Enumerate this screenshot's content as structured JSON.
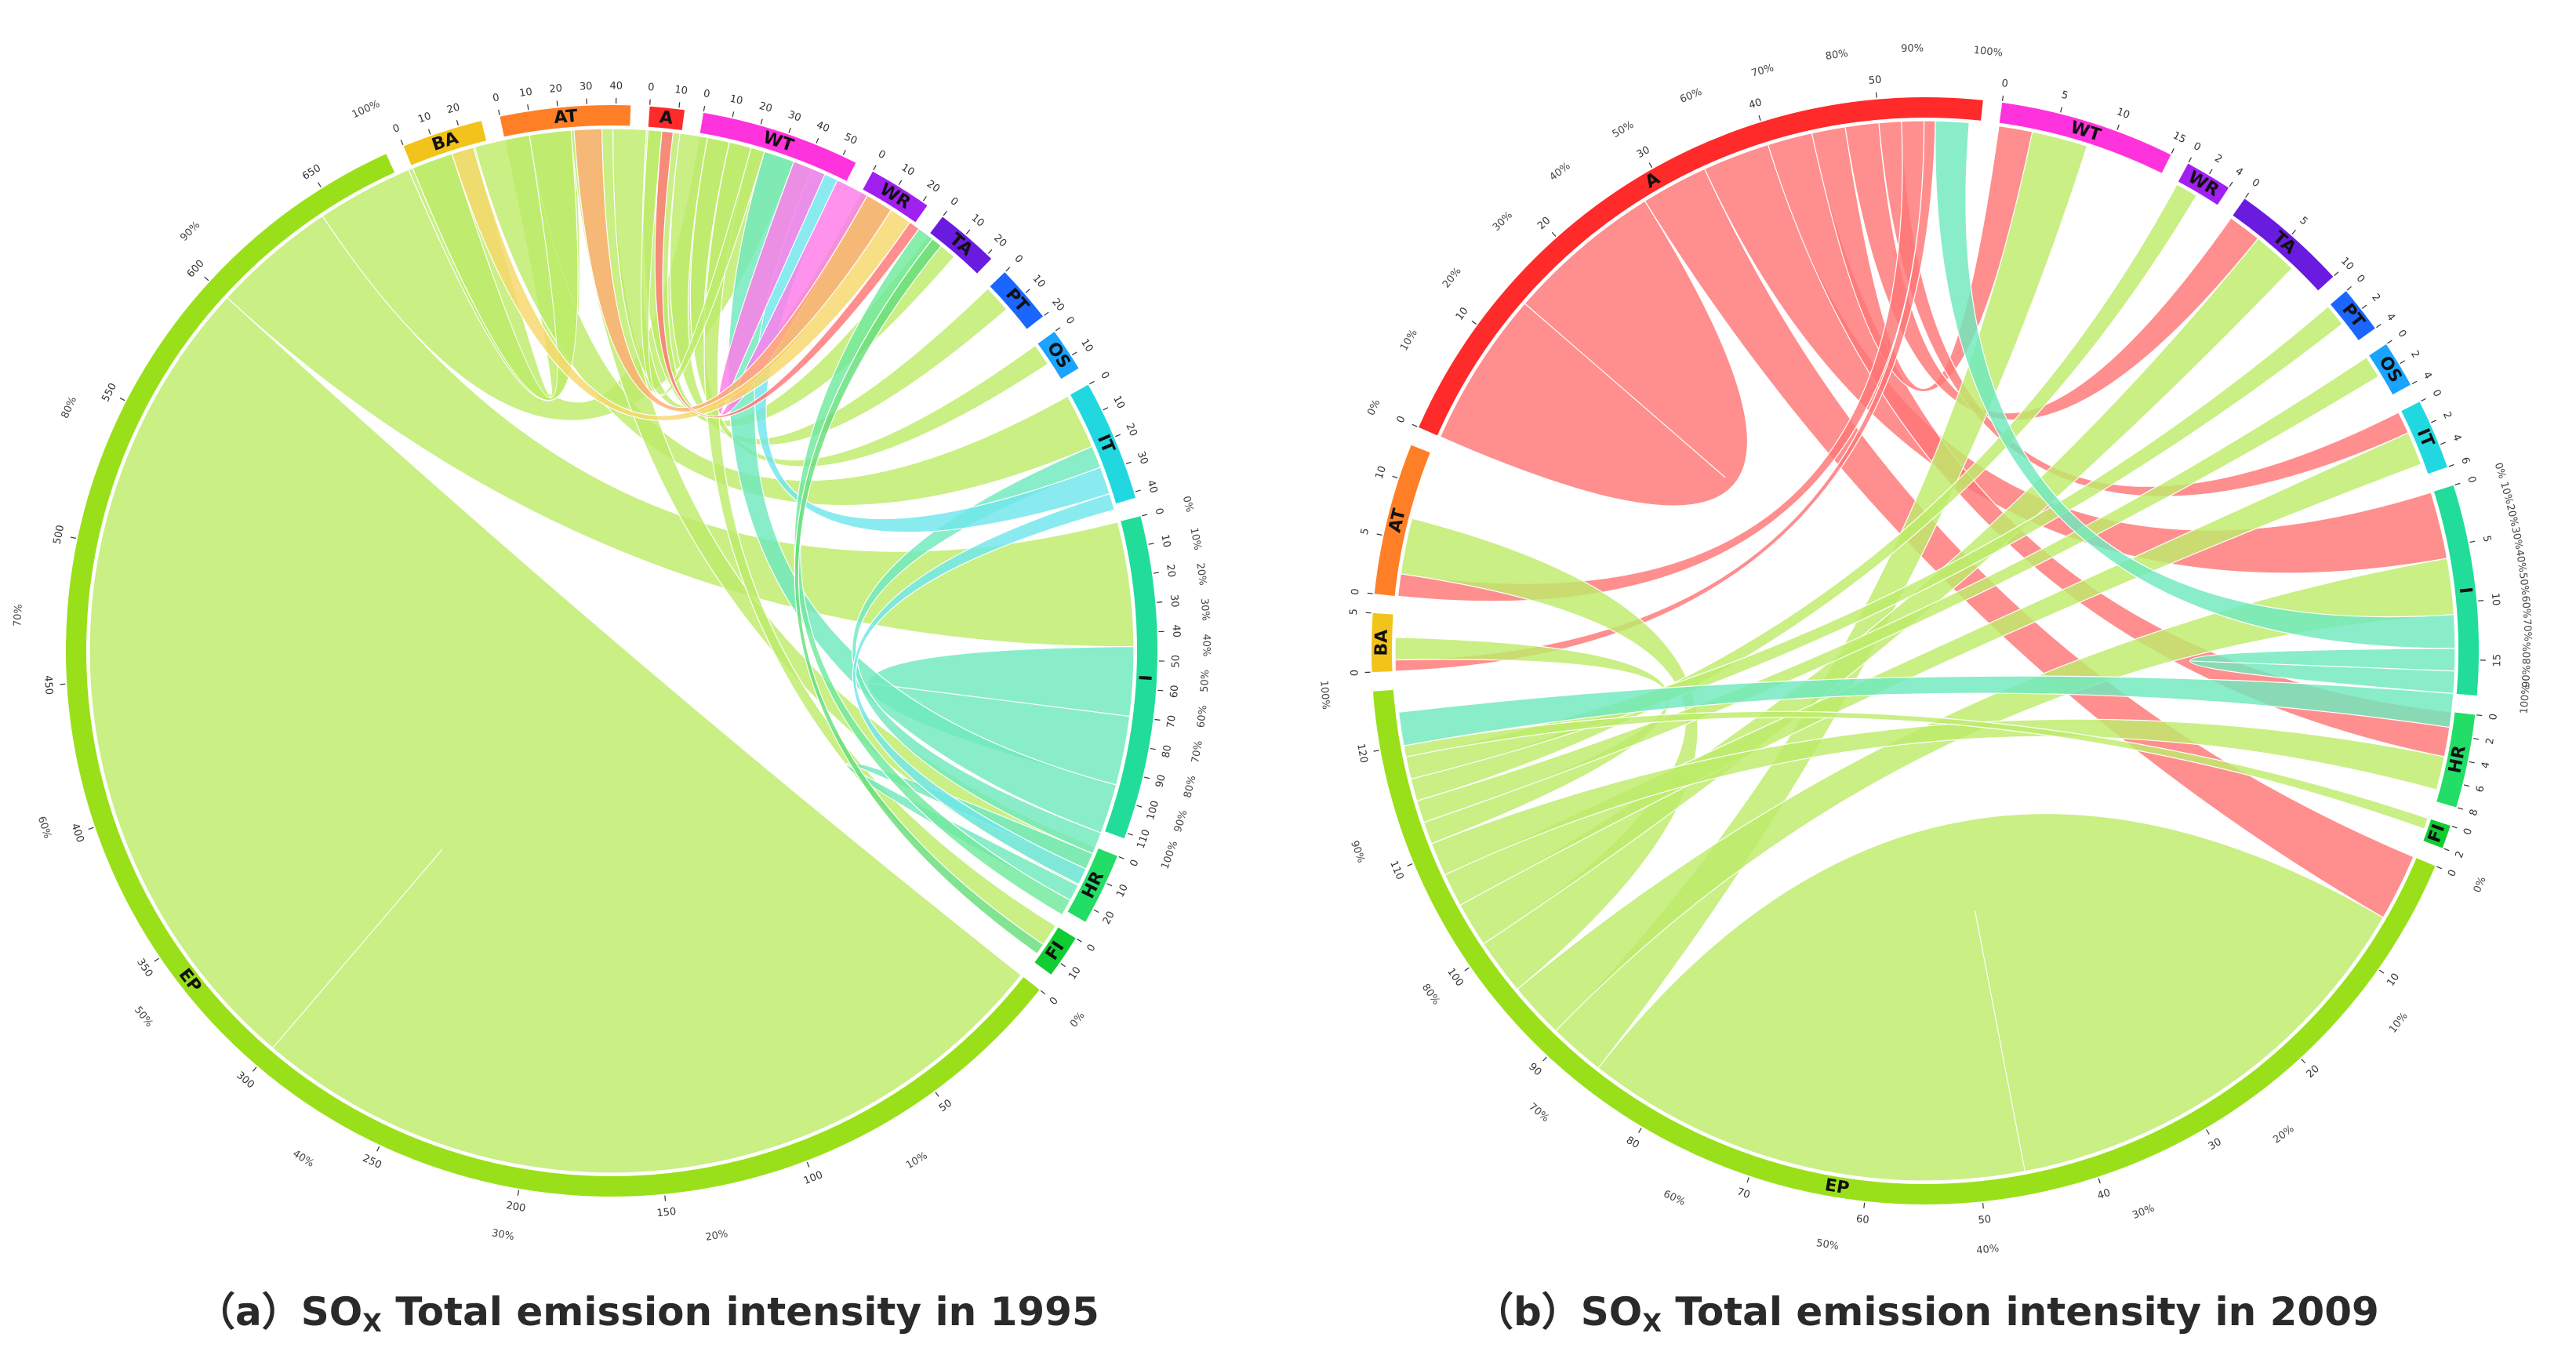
{
  "figure": {
    "panel_a": {
      "caption_prefix": "（a）",
      "caption_so": "SO",
      "caption_sub": "X",
      "caption_rest": " Total emission intensity in 1995"
    },
    "panel_b": {
      "caption_prefix": "（b）",
      "caption_so": "SO",
      "caption_sub": "X",
      "caption_rest": " Total emission intensity in 2009"
    }
  },
  "colors": {
    "A": "#ff2a2a",
    "WT": "#ff33dd",
    "WR": "#a020f0",
    "TA": "#6a1be0",
    "PT": "#1a66ff",
    "OS": "#1aa3ff",
    "IT": "#22d8e0",
    "I": "#22dd99",
    "HR": "#22dd66",
    "FI": "#11cc33",
    "EP": "#9ae01a",
    "BA": "#f2c31a",
    "AT": "#ff7f27"
  },
  "chart_data": [
    {
      "type": "chord",
      "year": "1995",
      "title": "SOx Total emission intensity in 1995",
      "sectors": [
        {
          "key": "A",
          "label": "A",
          "value": 12,
          "ticks": [
            "0",
            "10"
          ]
        },
        {
          "key": "WT",
          "label": "WT",
          "value": 55,
          "ticks": [
            "0",
            "10",
            "20",
            "30",
            "40",
            "50"
          ]
        },
        {
          "key": "WR",
          "label": "WR",
          "value": 22,
          "ticks": [
            "0",
            "10",
            "20"
          ]
        },
        {
          "key": "TA",
          "label": "TA",
          "value": 22,
          "ticks": [
            "0",
            "10",
            "20"
          ]
        },
        {
          "key": "PT",
          "label": "PT",
          "value": 20,
          "ticks": [
            "0",
            "10",
            "20"
          ]
        },
        {
          "key": "OS",
          "label": "OS",
          "value": 15,
          "ticks": [
            "0",
            "10"
          ]
        },
        {
          "key": "IT",
          "label": "IT",
          "value": 42,
          "ticks": [
            "0",
            "10",
            "20",
            "30",
            "40"
          ]
        },
        {
          "key": "I",
          "label": "I",
          "value": 112,
          "ticks": [
            "0",
            "10",
            "20",
            "30",
            "40",
            "50",
            "60",
            "70",
            "80",
            "90",
            "100",
            "110"
          ]
        },
        {
          "key": "HR",
          "label": "HR",
          "value": 25,
          "ticks": [
            "0",
            "10",
            "20"
          ]
        },
        {
          "key": "FI",
          "label": "FI",
          "value": 15,
          "ticks": [
            "0",
            "10"
          ]
        },
        {
          "key": "EP",
          "label": "EP",
          "value": 675,
          "ticks": [
            "0",
            "50",
            "100",
            "150",
            "200",
            "250",
            "300",
            "350",
            "400",
            "450",
            "500",
            "550",
            "600",
            "650"
          ]
        },
        {
          "key": "BA",
          "label": "BA",
          "value": 28,
          "ticks": [
            "0",
            "10",
            "20"
          ]
        },
        {
          "key": "AT",
          "label": "AT",
          "value": 45,
          "ticks": [
            "0",
            "10",
            "20",
            "30",
            "40"
          ]
        }
      ],
      "flows": [
        {
          "from": "EP",
          "to": "EP",
          "value": 300
        },
        {
          "from": "EP",
          "to": "I",
          "value": 45
        },
        {
          "from": "EP",
          "to": "WT",
          "value": 35
        },
        {
          "from": "EP",
          "to": "AT",
          "value": 25
        },
        {
          "from": "EP",
          "to": "IT",
          "value": 20
        },
        {
          "from": "EP",
          "to": "BA",
          "value": 15
        },
        {
          "from": "EP",
          "to": "HR",
          "value": 15
        },
        {
          "from": "EP",
          "to": "WR",
          "value": 12
        },
        {
          "from": "EP",
          "to": "TA",
          "value": 12
        },
        {
          "from": "EP",
          "to": "PT",
          "value": 10
        },
        {
          "from": "EP",
          "to": "OS",
          "value": 8
        },
        {
          "from": "EP",
          "to": "FI",
          "value": 8
        },
        {
          "from": "EP",
          "to": "A",
          "value": 5
        },
        {
          "from": "I",
          "to": "I",
          "value": 25
        },
        {
          "from": "I",
          "to": "EP",
          "value": 18
        },
        {
          "from": "I",
          "to": "IT",
          "value": 8
        },
        {
          "from": "I",
          "to": "HR",
          "value": 6
        },
        {
          "from": "IT",
          "to": "EP",
          "value": 10
        },
        {
          "from": "IT",
          "to": "I",
          "value": 6
        },
        {
          "from": "WT",
          "to": "EP",
          "value": 12
        },
        {
          "from": "AT",
          "to": "EP",
          "value": 10
        },
        {
          "from": "BA",
          "to": "EP",
          "value": 8
        },
        {
          "from": "A",
          "to": "EP",
          "value": 4
        },
        {
          "from": "HR",
          "to": "EP",
          "value": 6
        },
        {
          "from": "FI",
          "to": "EP",
          "value": 4
        }
      ],
      "percent_scale": [
        "0%",
        "10%",
        "20%",
        "30%",
        "40%",
        "50%",
        "60%",
        "70%",
        "80%",
        "90%",
        "100%"
      ]
    },
    {
      "type": "chord",
      "year": "2009",
      "title": "SOx Total emission intensity in 2009",
      "sectors": [
        {
          "key": "WT",
          "label": "WT",
          "value": 15,
          "ticks": [
            "0",
            "5",
            "10",
            "15"
          ]
        },
        {
          "key": "WR",
          "label": "WR",
          "value": 4,
          "ticks": [
            "0",
            "2",
            "4"
          ]
        },
        {
          "key": "TA",
          "label": "TA",
          "value": 10,
          "ticks": [
            "0",
            "5",
            "10"
          ]
        },
        {
          "key": "PT",
          "label": "PT",
          "value": 4,
          "ticks": [
            "0",
            "2",
            "4"
          ]
        },
        {
          "key": "OS",
          "label": "OS",
          "value": 4,
          "ticks": [
            "0",
            "2",
            "4"
          ]
        },
        {
          "key": "IT",
          "label": "IT",
          "value": 6,
          "ticks": [
            "0",
            "2",
            "4",
            "6"
          ]
        },
        {
          "key": "I",
          "label": "I",
          "value": 18,
          "ticks": [
            "0",
            "5",
            "10",
            "15"
          ]
        },
        {
          "key": "HR",
          "label": "HR",
          "value": 8,
          "ticks": [
            "0",
            "2",
            "4",
            "6",
            "8"
          ]
        },
        {
          "key": "FI",
          "label": "FI",
          "value": 2,
          "ticks": [
            "0",
            "2"
          ]
        },
        {
          "key": "EP",
          "label": "EP",
          "value": 125,
          "ticks": [
            "0",
            "10",
            "20",
            "30",
            "40",
            "50",
            "60",
            "70",
            "80",
            "90",
            "100",
            "110",
            "120"
          ]
        },
        {
          "key": "BA",
          "label": "BA",
          "value": 5,
          "ticks": [
            "0",
            "5"
          ]
        },
        {
          "key": "AT",
          "label": "AT",
          "value": 13,
          "ticks": [
            "0",
            "5",
            "10"
          ]
        },
        {
          "key": "A",
          "label": "A",
          "value": 59,
          "ticks": [
            "0",
            "10",
            "20",
            "30",
            "40",
            "50"
          ]
        }
      ],
      "flows": [
        {
          "from": "A",
          "to": "A",
          "value": 14
        },
        {
          "from": "A",
          "to": "EP",
          "value": 6
        },
        {
          "from": "A",
          "to": "I",
          "value": 6
        },
        {
          "from": "A",
          "to": "HR",
          "value": 4
        },
        {
          "from": "A",
          "to": "WT",
          "value": 3
        },
        {
          "from": "A",
          "to": "TA",
          "value": 3
        },
        {
          "from": "A",
          "to": "IT",
          "value": 2
        },
        {
          "from": "A",
          "to": "AT",
          "value": 2
        },
        {
          "from": "A",
          "to": "BA",
          "value": 1
        },
        {
          "from": "EP",
          "to": "EP",
          "value": 40
        },
        {
          "from": "EP",
          "to": "WT",
          "value": 5
        },
        {
          "from": "EP",
          "to": "I",
          "value": 5
        },
        {
          "from": "EP",
          "to": "AT",
          "value": 5
        },
        {
          "from": "EP",
          "to": "TA",
          "value": 4
        },
        {
          "from": "EP",
          "to": "IT",
          "value": 3
        },
        {
          "from": "EP",
          "to": "HR",
          "value": 3
        },
        {
          "from": "EP",
          "to": "BA",
          "value": 2
        },
        {
          "from": "EP",
          "to": "OS",
          "value": 2
        },
        {
          "from": "EP",
          "to": "WR",
          "value": 2
        },
        {
          "from": "EP",
          "to": "PT",
          "value": 2
        },
        {
          "from": "EP",
          "to": "FI",
          "value": 1
        },
        {
          "from": "I",
          "to": "A",
          "value": 3
        },
        {
          "from": "I",
          "to": "I",
          "value": 2
        },
        {
          "from": "I",
          "to": "EP",
          "value": 3
        }
      ],
      "percent_scale": [
        "0%",
        "10%",
        "20%",
        "30%",
        "40%",
        "50%",
        "60%",
        "70%",
        "80%",
        "90%",
        "100%"
      ]
    }
  ]
}
